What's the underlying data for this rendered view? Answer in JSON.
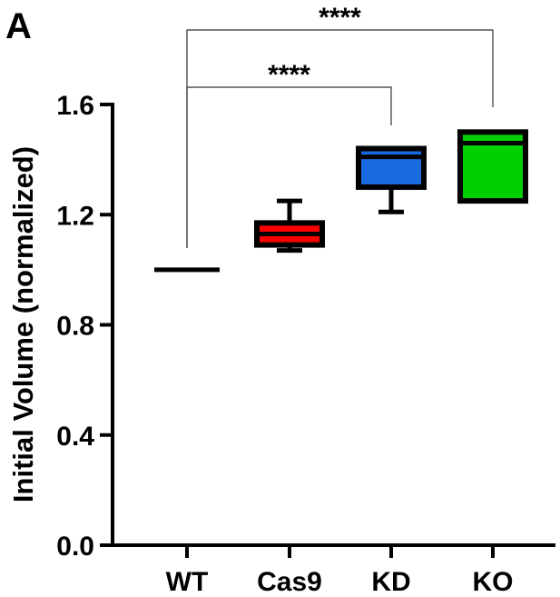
{
  "panel_label": "A",
  "chart_data": {
    "type": "box",
    "title": "",
    "xlabel": "",
    "ylabel": "Initial Volume (normalized)",
    "ylim": [
      0.0,
      1.6
    ],
    "yticks": [
      0.0,
      0.4,
      0.8,
      1.2,
      1.6
    ],
    "ytick_labels": [
      "0.0",
      "0.4",
      "0.8",
      "1.2",
      "1.6"
    ],
    "categories": [
      "WT",
      "Cas9",
      "KD",
      "KO"
    ],
    "grid": false,
    "legend": "none",
    "boxes": [
      {
        "category": "WT",
        "min": 1.0,
        "q1": 1.0,
        "median": 1.0,
        "q3": 1.0,
        "max": 1.0,
        "color": "#000000"
      },
      {
        "category": "Cas9",
        "min": 1.07,
        "q1": 1.09,
        "median": 1.13,
        "q3": 1.17,
        "max": 1.25,
        "color": "#ff0000"
      },
      {
        "category": "KD",
        "min": 1.21,
        "q1": 1.3,
        "median": 1.41,
        "q3": 1.44,
        "max": 1.44,
        "color": "#1a6ae0"
      },
      {
        "category": "KO",
        "min": 1.25,
        "q1": 1.25,
        "median": 1.46,
        "q3": 1.5,
        "max": 1.5,
        "color": "#00d000"
      }
    ],
    "significance": [
      {
        "from": "WT",
        "to": "KD",
        "label": "****"
      },
      {
        "from": "WT",
        "to": "KO",
        "label": "****"
      }
    ]
  }
}
